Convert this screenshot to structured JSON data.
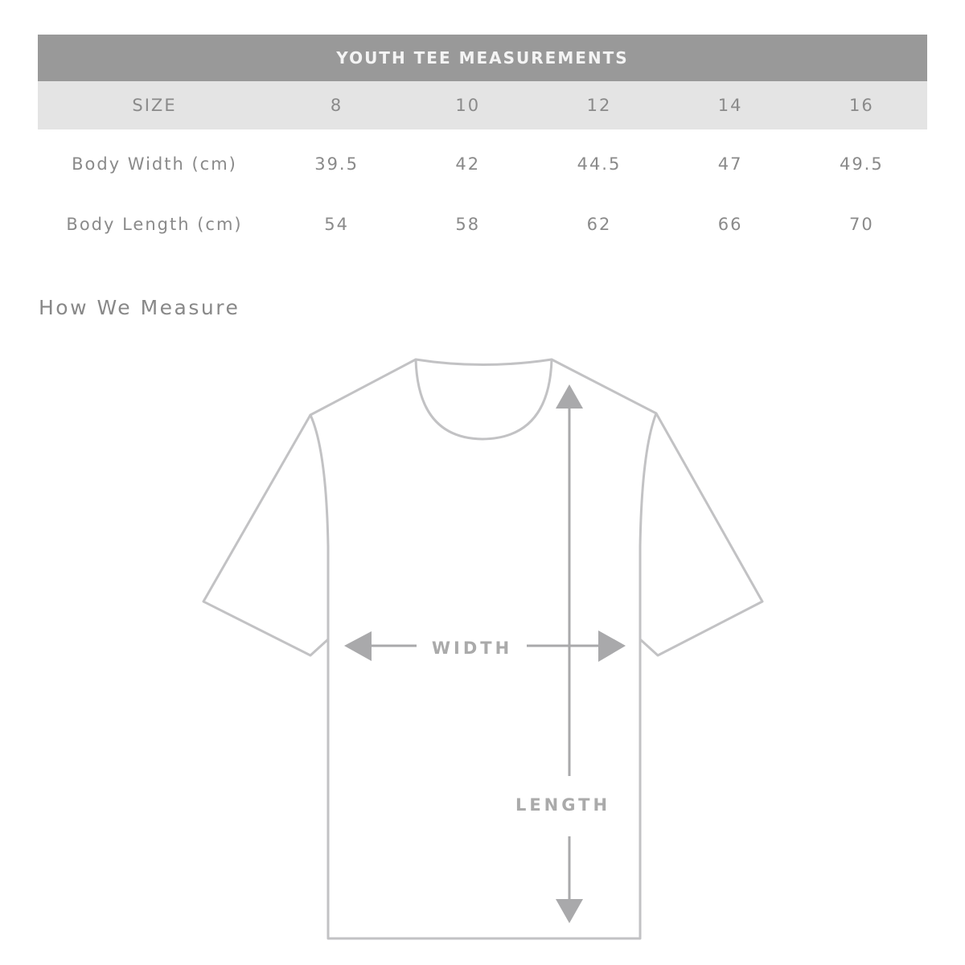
{
  "table": {
    "title": "YOUTH TEE MEASUREMENTS",
    "header": {
      "label": "SIZE",
      "sizes": [
        "8",
        "10",
        "12",
        "14",
        "16"
      ]
    },
    "rows": [
      {
        "label": "Body Width (cm)",
        "values": [
          "39.5",
          "42",
          "44.5",
          "47",
          "49.5"
        ]
      },
      {
        "label": "Body Length (cm)",
        "values": [
          "54",
          "58",
          "62",
          "66",
          "70"
        ]
      }
    ]
  },
  "diagram": {
    "heading": "How We Measure",
    "width_label": "WIDTH",
    "length_label": "LENGTH",
    "colors": {
      "header_band": "#999999",
      "size_row": "#e4e4e4",
      "outline": "#c2c2c4",
      "arrow": "#a9a9ab"
    }
  }
}
